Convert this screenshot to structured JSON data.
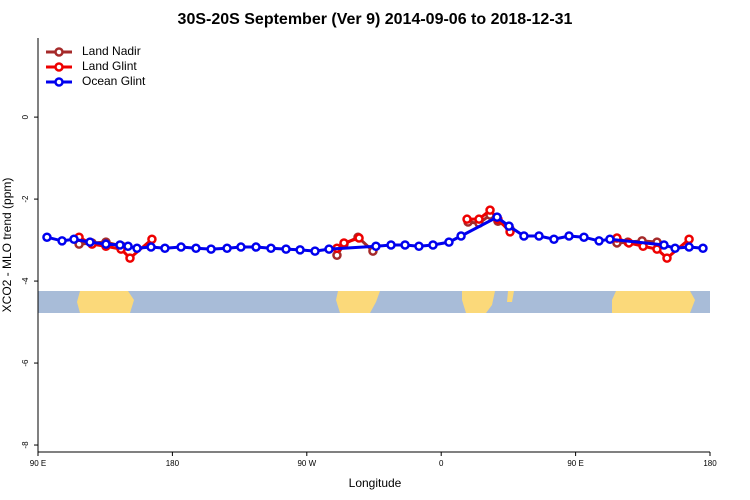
{
  "chart_data": {
    "type": "line",
    "title": "30S-20S September (Ver 9)   2014-09-06 to 2018-12-31",
    "x_label": "Longitude",
    "y_label": "XCO2 - MLO trend (ppm)",
    "xlim": [
      90,
      540
    ],
    "ylim": [
      -8.17,
      1.93
    ],
    "xticks": [
      {
        "value": 90,
        "label": "90 E"
      },
      {
        "value": 180,
        "label": "180"
      },
      {
        "value": 270,
        "label": "90 W"
      },
      {
        "value": 360,
        "label": "0"
      },
      {
        "value": 450,
        "label": "90 E"
      },
      {
        "value": 540,
        "label": "180"
      }
    ],
    "yticks": [
      -8,
      -6,
      -4,
      -2,
      0
    ],
    "legend": "top-left",
    "series": [
      {
        "name": "Land Nadir",
        "color": "#a52a2a",
        "x": [
          117.5,
          126.2,
          135.5,
          146.2,
          null,
          290.2,
          294.9,
          304.3,
          314.3,
          null,
          378.0,
          385.3,
          392.7,
          398.0,
          406.1,
          null,
          477.7,
          485.0,
          494.5,
          504.5
        ],
        "values": [
          -3.1,
          -3.07,
          -3.05,
          -3.15,
          null,
          -3.37,
          -3.1,
          -2.93,
          -3.27,
          null,
          -2.56,
          -2.59,
          -2.39,
          -2.54,
          -2.73,
          null,
          -3.07,
          -3.05,
          -3.02,
          -3.05
        ]
      },
      {
        "name": "Land Glint",
        "color": "#ee0000",
        "x": [
          117.5,
          126.2,
          135.5,
          145.6,
          151.6,
          166.3,
          null,
          290.2,
          294.9,
          305.0,
          null,
          377.3,
          385.3,
          392.7,
          398.0,
          406.1,
          null,
          477.7,
          485.7,
          495.2,
          504.5,
          511.2,
          526.0
        ],
        "values": [
          -2.93,
          -3.1,
          -3.15,
          -3.22,
          -3.44,
          -2.98,
          null,
          -3.2,
          -3.07,
          -2.95,
          null,
          -2.49,
          -2.49,
          -2.27,
          -2.49,
          -2.8,
          null,
          -2.95,
          -3.07,
          -3.15,
          -3.22,
          -3.44,
          -2.98
        ]
      },
      {
        "name": "Ocean Glint",
        "color": "#0000ee",
        "x": [
          96.0,
          106.1,
          114.1,
          124.8,
          135.5,
          144.9,
          150.3,
          156.3,
          165.7,
          175.0,
          185.8,
          195.8,
          205.9,
          216.6,
          225.9,
          236.0,
          246.0,
          256.1,
          265.5,
          275.5,
          284.9,
          316.3,
          326.4,
          335.8,
          345.1,
          354.5,
          365.2,
          373.3,
          397.4,
          405.4,
          415.4,
          425.5,
          435.5,
          445.6,
          455.6,
          465.7,
          473.0,
          509.2,
          516.6,
          526.0,
          535.3
        ],
        "values": [
          -2.93,
          -3.02,
          -2.98,
          -3.05,
          -3.1,
          -3.12,
          -3.15,
          -3.2,
          -3.17,
          -3.2,
          -3.17,
          -3.2,
          -3.22,
          -3.2,
          -3.17,
          -3.17,
          -3.2,
          -3.22,
          -3.24,
          -3.27,
          -3.22,
          -3.15,
          -3.12,
          -3.12,
          -3.15,
          -3.12,
          -3.05,
          -2.9,
          -2.44,
          -2.66,
          -2.9,
          -2.9,
          -2.98,
          -2.9,
          -2.93,
          -3.02,
          -2.98,
          -3.12,
          -3.2,
          -3.17,
          -3.2
        ]
      }
    ]
  }
}
